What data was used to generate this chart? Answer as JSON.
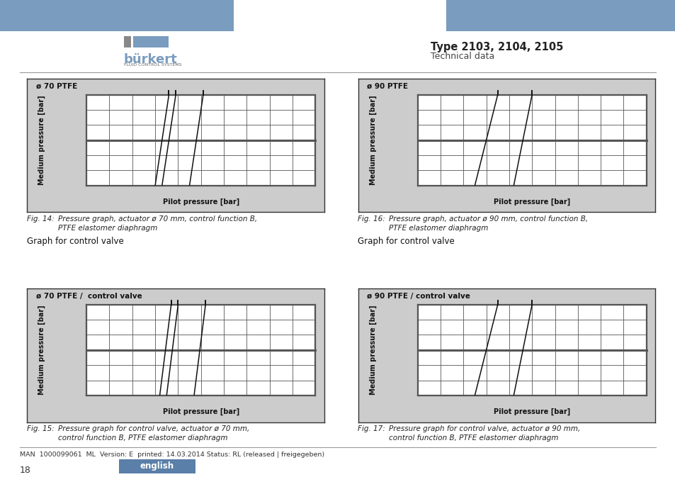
{
  "header_color": "#7a9cbf",
  "header_text_title": "Type 2103, 2104, 2105",
  "header_text_subtitle": "Technical data",
  "fig14_title": "ø 70 PTFE",
  "fig14_xlabel": "Pilot pressure [bar]",
  "fig14_ylabel": "Medium pressure [bar]",
  "fig14_caption1": "Fig. 14:",
  "fig14_caption2": "Pressure graph, actuator ø 70 mm, control function B,",
  "fig14_caption3": "PTFE elastomer diaphragm",
  "fig14_lines": [
    {
      "x": [
        3.0,
        3.6
      ],
      "y": [
        0,
        10
      ]
    },
    {
      "x": [
        3.3,
        3.9
      ],
      "y": [
        0,
        10
      ]
    },
    {
      "x": [
        4.5,
        5.1
      ],
      "y": [
        0,
        10
      ]
    }
  ],
  "fig15_title": "ø 70 PTFE /  control valve",
  "fig15_xlabel": "Pilot pressure [bar]",
  "fig15_ylabel": "Medium pressure [bar]",
  "fig15_caption1": "Fig. 15:",
  "fig15_caption2": "Pressure graph for control valve, actuator ø 70 mm,",
  "fig15_caption3": "control function B, PTFE elastomer diaphragm",
  "fig15_lines": [
    {
      "x": [
        3.2,
        3.7
      ],
      "y": [
        0,
        10
      ]
    },
    {
      "x": [
        3.5,
        4.0
      ],
      "y": [
        0,
        10
      ]
    },
    {
      "x": [
        4.7,
        5.2
      ],
      "y": [
        0,
        10
      ]
    }
  ],
  "fig16_title": "ø 90 PTFE",
  "fig16_xlabel": "Pilot pressure [bar]",
  "fig16_ylabel": "Medium pressure [bar]",
  "fig16_caption1": "Fig. 16:",
  "fig16_caption2": "Pressure graph, actuator ø 90 mm, control function B,",
  "fig16_caption3": "PTFE elastomer diaphragm",
  "fig16_lines": [
    {
      "x": [
        2.5,
        3.5
      ],
      "y": [
        0,
        10
      ]
    },
    {
      "x": [
        4.2,
        5.0
      ],
      "y": [
        0,
        10
      ]
    }
  ],
  "fig17_title": "ø 90 PTFE / control valve",
  "fig17_xlabel": "Pilot pressure [bar]",
  "fig17_ylabel": "Medium pressure [bar]",
  "fig17_caption1": "Fig. 17:",
  "fig17_caption2": "Pressure graph for control valve, actuator ø 90 mm,",
  "fig17_caption3": "control function B, PTFE elastomer diaphragm",
  "fig17_lines": [
    {
      "x": [
        2.5,
        3.5
      ],
      "y": [
        0,
        10
      ]
    },
    {
      "x": [
        4.2,
        5.0
      ],
      "y": [
        0,
        10
      ]
    }
  ],
  "footer_text": "MAN  1000099061  ML  Version: E  printed: 14.03.2014 Status: RL (released | freigegeben)",
  "page_number": "18",
  "english_bg": "#5a7fa8",
  "english_text": "english",
  "graph_bg": "#cccccc",
  "plot_bg": "#ffffff",
  "grid_color": "#555555",
  "line_color": "#111111",
  "border_color": "#333333",
  "gcv_text": "Graph for control valve"
}
